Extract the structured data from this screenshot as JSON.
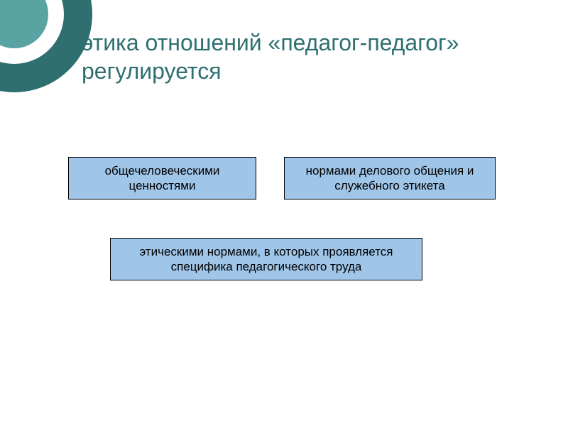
{
  "type": "diagram",
  "background_color": "#ffffff",
  "title": {
    "text": "этика отношений «педагог-педагог» регулируется",
    "color": "#2f6f6f",
    "fontsize": 32
  },
  "decor": {
    "rings": [
      {
        "size": 220,
        "inset": 0,
        "color": "#2f6f6f",
        "thickness": 40
      },
      {
        "size": 140,
        "inset": 40,
        "color": "#ffffff",
        "thickness": 22
      },
      {
        "size": 96,
        "inset": 62,
        "color": "#5aa3a3",
        "thickness": 48
      }
    ],
    "bullet_border_color": "#2f6f6f"
  },
  "box_style": {
    "fill": "#9fc5e8",
    "border": "#000000",
    "fontsize": 17
  },
  "boxes": {
    "b1": "общечеловеческими ценностями",
    "b2": "нормами делового общения и служебного этикета",
    "b3": "этическими нормами, в которых проявляется специфика педагогического труда"
  }
}
